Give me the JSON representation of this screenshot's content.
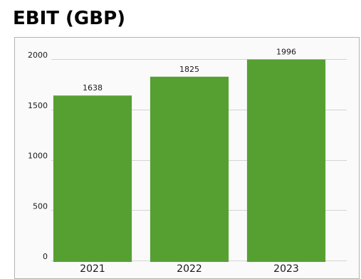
{
  "title": "EBIT (GBP)",
  "chart_data": {
    "type": "bar",
    "categories": [
      "2021",
      "2022",
      "2023"
    ],
    "values": [
      1638,
      1825,
      1996
    ],
    "data_labels": [
      "1638",
      "1825",
      "1996"
    ],
    "title": "EBIT (GBP)",
    "xlabel": "",
    "ylabel": "",
    "ylim": [
      0,
      2000
    ],
    "yticks": [
      0,
      500,
      1000,
      1500,
      2000
    ],
    "ytick_labels": [
      "0",
      "500",
      "1000",
      "1500",
      "2000"
    ],
    "grid": true,
    "legend": "none",
    "bar_color": "#56a032"
  }
}
